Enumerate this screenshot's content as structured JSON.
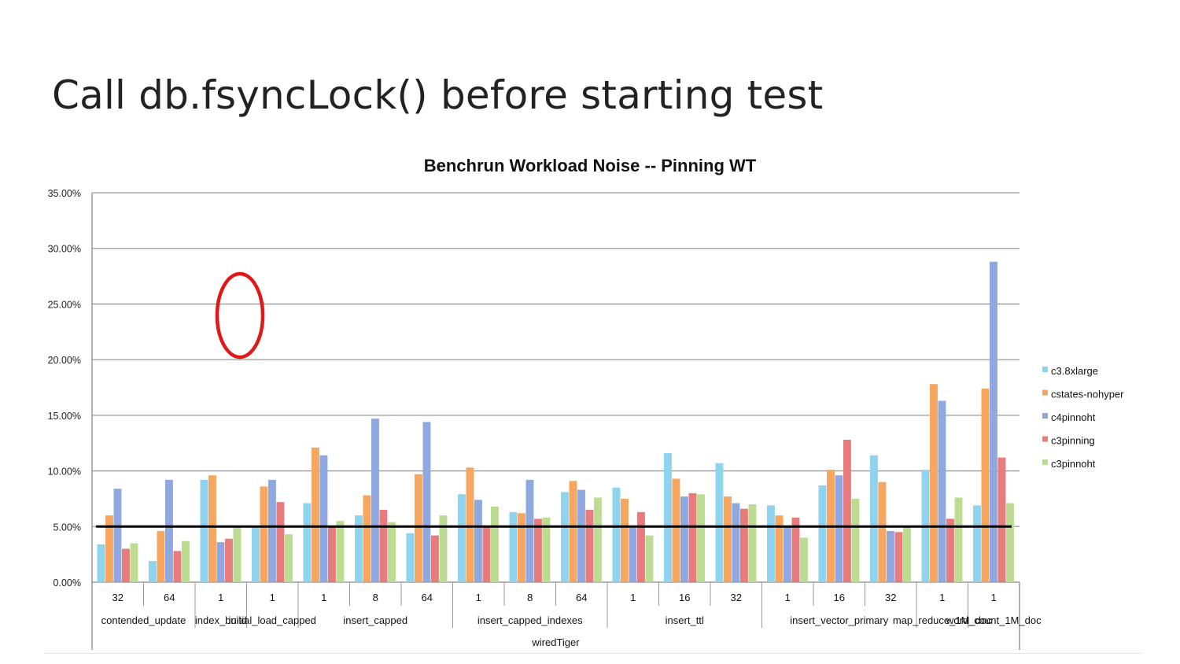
{
  "slide": {
    "title": "Call db.fsyncLock() before starting test"
  },
  "chart_data": {
    "type": "bar",
    "title": "Benchrun Workload Noise -- Pinning WT",
    "xlabel": "",
    "ylabel": "",
    "ylim": [
      0,
      35
    ],
    "y_ticks": [
      0,
      5,
      10,
      15,
      20,
      25,
      30,
      35
    ],
    "y_tick_labels": [
      "0.00%",
      "5.00%",
      "10.00%",
      "15.00%",
      "20.00%",
      "25.00%",
      "30.00%",
      "35.00%"
    ],
    "grid": true,
    "legend_position": "right",
    "threshold_line": 5,
    "categories": [
      "32",
      "64",
      "1",
      "1",
      "1",
      "8",
      "64",
      "1",
      "8",
      "64",
      "1",
      "16",
      "32",
      "1",
      "16",
      "32",
      "1",
      "1"
    ],
    "group_labels": [
      {
        "label": "contended_update",
        "from": 0,
        "to": 1
      },
      {
        "label": "index_build",
        "from": 2,
        "to": 2
      },
      {
        "label": "initial_load_capped",
        "from": 3,
        "to": 3
      },
      {
        "label": "insert_capped",
        "from": 4,
        "to": 6
      },
      {
        "label": "insert_capped_indexes",
        "from": 7,
        "to": 9
      },
      {
        "label": "insert_ttl",
        "from": 10,
        "to": 12
      },
      {
        "label": "insert_vector_primary",
        "from": 13,
        "to": 15
      },
      {
        "label": "map_reduce_1M_doc",
        "from": 16,
        "to": 16
      },
      {
        "label": "word_count_1M_doc",
        "from": 17,
        "to": 17
      }
    ],
    "outer_label": "wiredTiger",
    "series": [
      {
        "name": "c3.8xlarge",
        "color": "#8fd3ee",
        "values": [
          3.4,
          1.9,
          9.2,
          4.9,
          7.1,
          6.0,
          4.4,
          7.9,
          6.3,
          8.1,
          8.5,
          11.6,
          10.7,
          6.9,
          8.7,
          11.4,
          10.1,
          6.9
        ]
      },
      {
        "name": "cstates-nohyper",
        "color": "#f7a660",
        "values": [
          6.0,
          4.6,
          9.6,
          8.6,
          12.1,
          7.8,
          9.7,
          10.3,
          6.2,
          9.1,
          7.5,
          9.3,
          7.7,
          6.0,
          10.1,
          9.0,
          17.8,
          17.4
        ]
      },
      {
        "name": "c4pinnoht",
        "color": "#8fa9e0",
        "values": [
          8.4,
          9.2,
          3.6,
          9.2,
          11.4,
          14.7,
          14.4,
          7.4,
          9.2,
          8.3,
          4.9,
          7.7,
          7.1,
          5.0,
          9.6,
          4.6,
          16.3,
          28.8
        ]
      },
      {
        "name": "c3pinning",
        "color": "#e87b7b",
        "values": [
          3.0,
          2.8,
          3.9,
          7.2,
          5.0,
          6.5,
          4.2,
          5.1,
          5.7,
          6.5,
          6.3,
          8.0,
          6.6,
          5.8,
          12.8,
          4.5,
          5.7,
          11.2
        ]
      },
      {
        "name": "c3pinnoht",
        "color": "#bcdc92",
        "values": [
          3.5,
          3.7,
          4.9,
          4.3,
          5.5,
          5.4,
          6.0,
          6.8,
          5.8,
          7.6,
          4.2,
          7.9,
          7.0,
          4.0,
          7.5,
          5.0,
          7.6,
          7.1
        ]
      }
    ],
    "annotation": {
      "shape": "ellipse",
      "color": "#e01818",
      "target_category": 2
    }
  }
}
